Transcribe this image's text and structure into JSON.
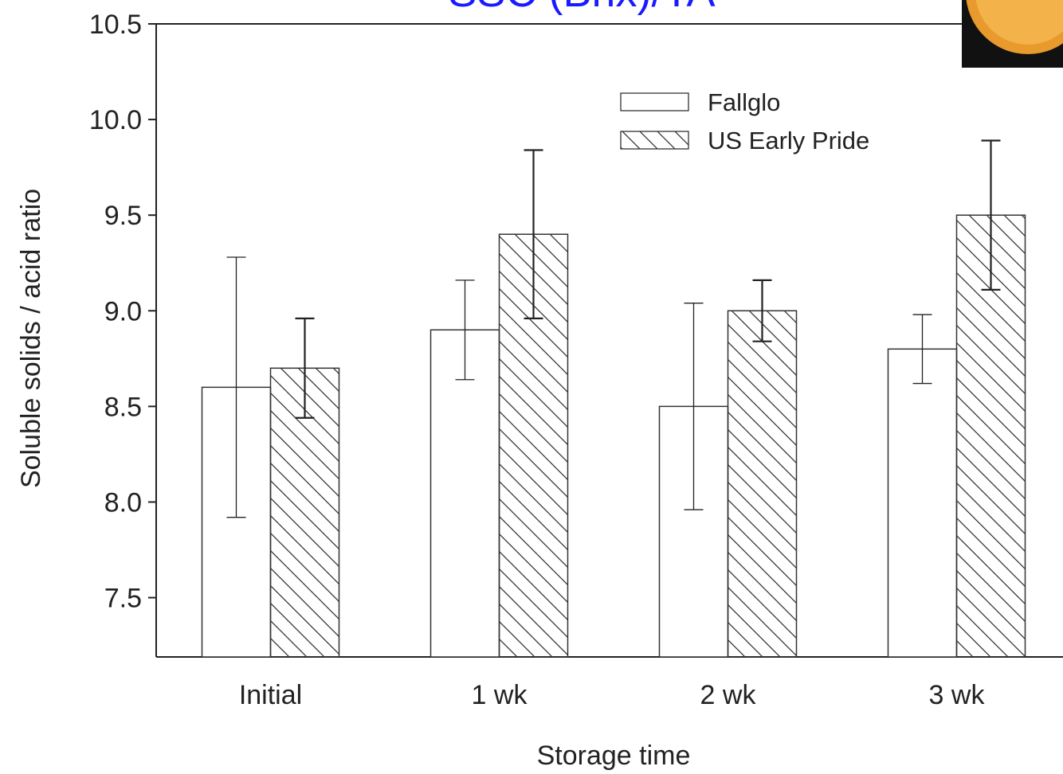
{
  "chart_data": {
    "type": "bar",
    "title": "SSC (Brix)/TA",
    "x_label": "Storage time",
    "y_label": "Soluble solids / acid ratio",
    "categories": [
      "Initial",
      "1 wk",
      "2 wk",
      "3 wk"
    ],
    "series": [
      {
        "name": "Fallglo",
        "color": "#ffffff",
        "hatch": false,
        "values": [
          8.6,
          8.9,
          8.5,
          8.8
        ],
        "errors": [
          0.68,
          0.26,
          0.54,
          0.18
        ]
      },
      {
        "name": "US Early Pride",
        "color": "#ffffff",
        "hatch": true,
        "values": [
          8.7,
          9.4,
          9.0,
          9.5
        ],
        "errors": [
          0.26,
          0.44,
          0.16,
          0.39
        ]
      }
    ],
    "ylim": [
      7.19,
      10.5
    ],
    "yticks": [
      7.5,
      {
        "value": 8,
        "label": "8.0"
      },
      8.5,
      {
        "value": 9,
        "label": "9.0"
      },
      9.5,
      {
        "value": 10,
        "label": "10.0"
      },
      10.5
    ],
    "legend": "top-right"
  }
}
